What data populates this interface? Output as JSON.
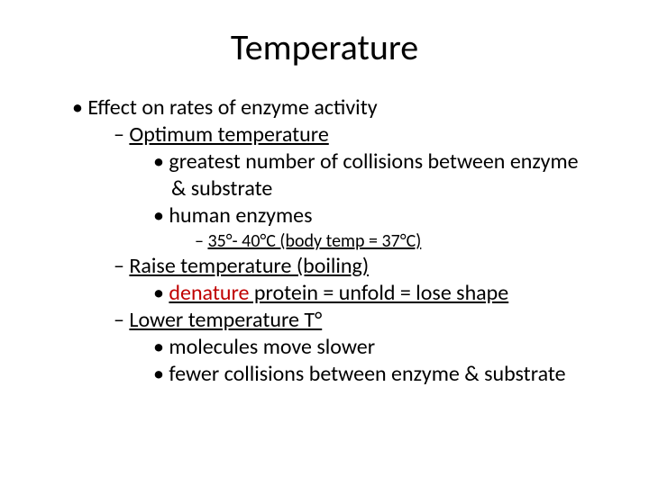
{
  "title": "Temperature",
  "colors": {
    "text": "#000000",
    "accent": "#c00000",
    "background": "#ffffff"
  },
  "typography": {
    "title_fontsize": 40,
    "body_fontsize": 24,
    "small_fontsize": 20,
    "font_family": "Calibri"
  },
  "bullets": {
    "l1": "Effect on rates of enzyme activity",
    "l2a": "Optimum temperature",
    "l3a": "greatest number of collisions between enzyme",
    "l3a_cont": "& substrate",
    "l3b": "human enzymes",
    "l4a": "35°- 40°C (body temp = 37°C)",
    "l2b": "Raise temperature (boiling)",
    "l3c_pre": "",
    "l3c_accent": "denature",
    "l3c_post": " protein = unfold = lose shape",
    "l2c": "Lower temperature T°",
    "l3d": "molecules move slower",
    "l3e": "fewer collisions between enzyme & substrate"
  }
}
